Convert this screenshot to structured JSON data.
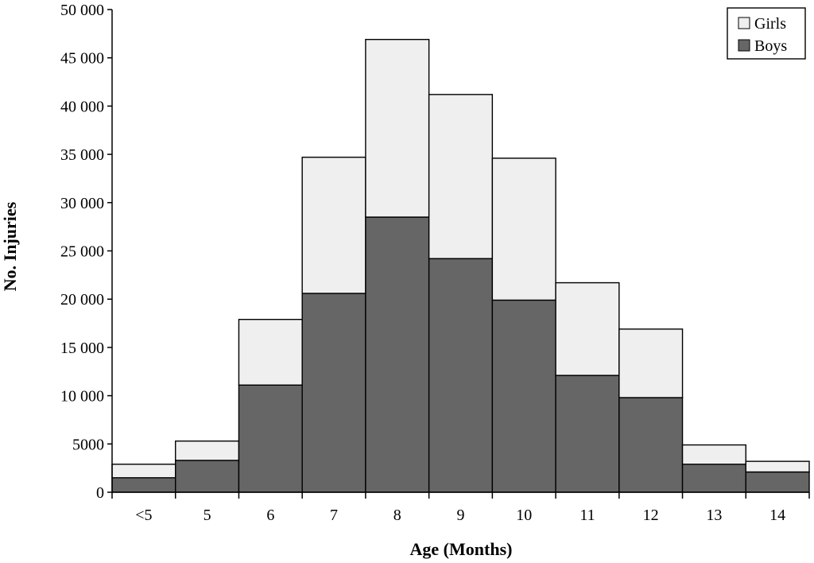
{
  "chart_data": {
    "type": "bar",
    "stacked": true,
    "title": "",
    "xlabel": "Age (Months)",
    "ylabel": "No. Injuries",
    "categories": [
      "<5",
      "5",
      "6",
      "7",
      "8",
      "9",
      "10",
      "11",
      "12",
      "13",
      "14"
    ],
    "series": [
      {
        "name": "Boys",
        "color": "#666666",
        "values": [
          1500,
          3300,
          11100,
          20600,
          28500,
          24200,
          19900,
          12100,
          9800,
          2900,
          2100
        ]
      },
      {
        "name": "Girls",
        "color": "#efefef",
        "values": [
          1400,
          2000,
          6800,
          14100,
          18400,
          17000,
          14700,
          9600,
          7100,
          2000,
          1100
        ]
      }
    ],
    "ylim": [
      0,
      50000
    ],
    "yticks": [
      0,
      5000,
      10000,
      15000,
      20000,
      25000,
      30000,
      35000,
      40000,
      45000,
      50000
    ],
    "ytick_labels": [
      "0",
      "5000",
      "10 000",
      "15 000",
      "20 000",
      "25 000",
      "30 000",
      "35 000",
      "40 000",
      "45 000",
      "50 000"
    ],
    "grid": false,
    "legend_position": "top-right",
    "legend_order": [
      "Girls",
      "Boys"
    ]
  }
}
